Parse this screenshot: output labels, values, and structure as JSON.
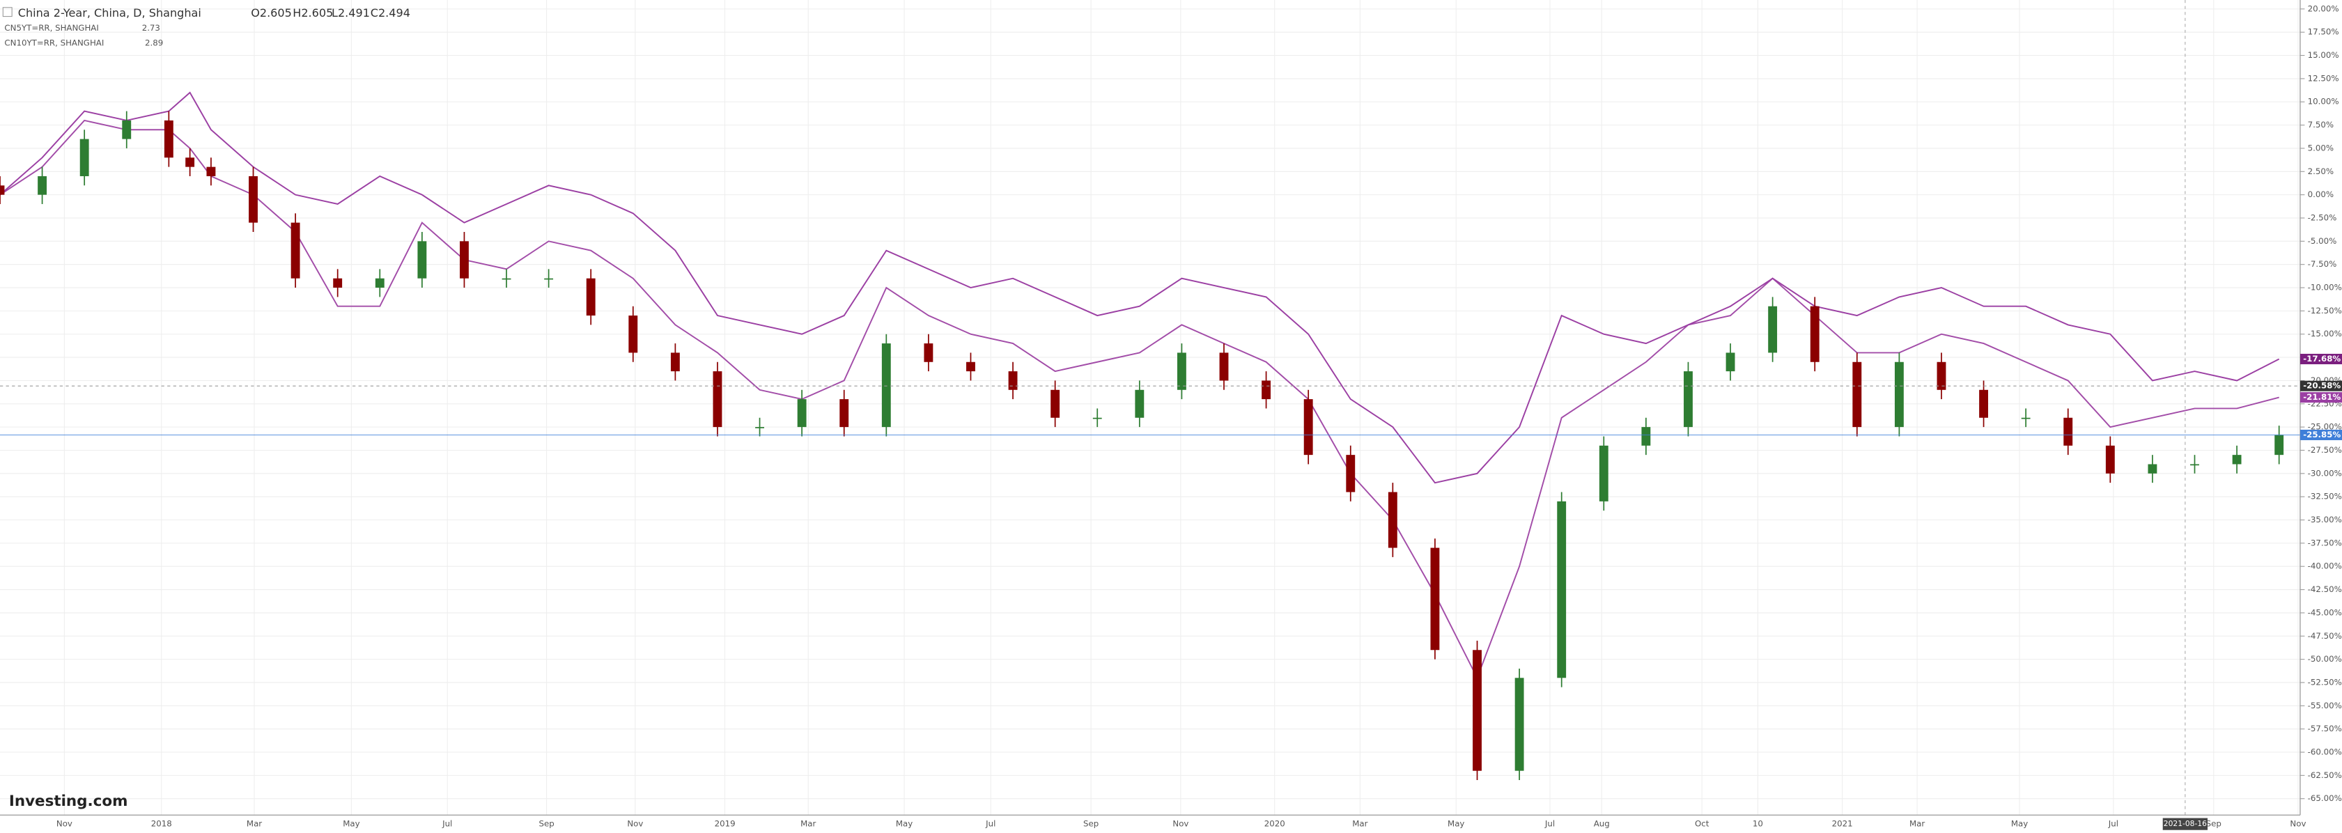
{
  "chart_data": {
    "type": "candlestick",
    "title": "China 2-Year, China, D, Shanghai",
    "ohlc_labels": [
      "O2.605",
      "H2.605",
      "L2.491",
      "C2.494"
    ],
    "logo": "Investing.com",
    "crosshair_label": "2021-08-16",
    "x": [
      0,
      4,
      8,
      12,
      16,
      18,
      20,
      24,
      28,
      32,
      36,
      40,
      44,
      48,
      52,
      56,
      60,
      64,
      68,
      72,
      76,
      80,
      84,
      88,
      92,
      96,
      100,
      104,
      108,
      112,
      116,
      120,
      124,
      128,
      132,
      136,
      140,
      144,
      148,
      152,
      156,
      160,
      164,
      168,
      172,
      176,
      180,
      184,
      188,
      192,
      196,
      200,
      204,
      208,
      212,
      216
    ],
    "open": [
      1,
      0,
      2,
      6,
      8,
      4,
      3,
      2,
      -3,
      -9,
      -10,
      -9,
      -5,
      -9,
      -9,
      -9,
      -13,
      -17,
      -19,
      -25,
      -25,
      -22,
      -25,
      -16,
      -18,
      -19,
      -21,
      -24,
      -24,
      -21,
      -17,
      -20,
      -22,
      -28,
      -32,
      -38,
      -49,
      -62,
      -52,
      -33,
      -27,
      -25,
      -19,
      -17,
      -12,
      -18,
      -25,
      -18,
      -21,
      -24,
      -24,
      -27,
      -30,
      -29,
      -29,
      -28
    ],
    "high": [
      2,
      3,
      7,
      9,
      9,
      5,
      4,
      3,
      -2,
      -8,
      -8,
      -4,
      -4,
      -8,
      -8,
      -8,
      -12,
      -16,
      -18,
      -24,
      -21,
      -21,
      -15,
      -15,
      -17,
      -18,
      -20,
      -23,
      -20,
      -16,
      -16,
      -19,
      -21,
      -27,
      -31,
      -37,
      -48,
      -51,
      -32,
      -26,
      -24,
      -18,
      -16,
      -11,
      -11,
      -17,
      -17,
      -17,
      -20,
      -23,
      -23,
      -26,
      -28,
      -28,
      -27,
      -24.85
    ],
    "low": [
      -1,
      -1,
      1,
      5,
      3,
      2,
      1,
      -4,
      -10,
      -11,
      -11,
      -10,
      -10,
      -10,
      -10,
      -14,
      -18,
      -20,
      -26,
      -26,
      -26,
      -26,
      -26,
      -19,
      -20,
      -22,
      -25,
      -25,
      -25,
      -22,
      -21,
      -23,
      -29,
      -33,
      -39,
      -50,
      -63,
      -63,
      -53,
      -34,
      -28,
      -26,
      -20,
      -18,
      -19,
      -26,
      -26,
      -22,
      -25,
      -25,
      -28,
      -31,
      -31,
      -30,
      -30,
      -29
    ],
    "close": [
      0,
      2,
      6,
      8,
      4,
      3,
      2,
      -3,
      -9,
      -10,
      -9,
      -5,
      -9,
      -9,
      -9,
      -13,
      -17,
      -19,
      -25,
      -25,
      -22,
      -25,
      -16,
      -18,
      -19,
      -21,
      -24,
      -24,
      -21,
      -17,
      -20,
      -22,
      -28,
      -32,
      -38,
      -49,
      -62,
      -52,
      -33,
      -27,
      -25,
      -19,
      -17,
      -12,
      -18,
      -25,
      -18,
      -21,
      -24,
      -24,
      -27,
      -30,
      -29,
      -29,
      -28,
      -25.85
    ],
    "up_color": "#2e7d32",
    "down_color": "#8b0000",
    "series": [
      {
        "name": "CN5YT=RR, SHANGHAI",
        "last": "2.73",
        "color": "#a24ca8",
        "values": [
          0,
          3,
          8,
          7,
          7,
          5,
          2,
          0,
          -4,
          -12,
          -12,
          -3,
          -7,
          -8,
          -5,
          -6,
          -9,
          -14,
          -17,
          -21,
          -22,
          -20,
          -10,
          -13,
          -15,
          -16,
          -19,
          -18,
          -17,
          -14,
          -16,
          -18,
          -22,
          -30,
          -35,
          -43,
          -52,
          -40,
          -24,
          -21,
          -18,
          -14,
          -13,
          -9,
          -13,
          -17,
          -17,
          -15,
          -16,
          -18,
          -20,
          -25,
          -24,
          -23,
          -23,
          -21.81
        ]
      },
      {
        "name": "CN10YT=RR, SHANGHAI",
        "last": "2.89",
        "color": "#9b3fa3",
        "values": [
          0,
          4,
          9,
          8,
          9,
          11,
          7,
          3,
          0,
          -1,
          2,
          0,
          -3,
          -1,
          1,
          0,
          -2,
          -6,
          -13,
          -14,
          -15,
          -13,
          -6,
          -8,
          -10,
          -9,
          -11,
          -13,
          -12,
          -9,
          -10,
          -11,
          -15,
          -22,
          -25,
          -31,
          -30,
          -25,
          -13,
          -15,
          -16,
          -14,
          -12,
          -9,
          -12,
          -13,
          -11,
          -10,
          -12,
          -12,
          -14,
          -15,
          -20,
          -19,
          -20,
          -17.68
        ]
      }
    ],
    "badges": [
      {
        "value": -17.68,
        "label": "-17.68%",
        "color": "#7b1f7f"
      },
      {
        "value": -20.58,
        "label": "-20.58%",
        "color": "#333333"
      },
      {
        "value": -21.81,
        "label": "-21.81%",
        "color": "#9b3fa3"
      },
      {
        "value": -25.85,
        "label": "-25.85%",
        "color": "#3f7fd9"
      }
    ],
    "xlim": [
      0,
      218
    ],
    "ylim": [
      -65,
      20
    ],
    "yticks": [
      {
        "value": 20,
        "label": "20.00%"
      },
      {
        "value": 17.5,
        "label": "17.50%"
      },
      {
        "value": 15,
        "label": "15.00%"
      },
      {
        "value": 12.5,
        "label": "12.50%"
      },
      {
        "value": 10,
        "label": "10.00%"
      },
      {
        "value": 7.5,
        "label": "7.50%"
      },
      {
        "value": 5,
        "label": "5.00%"
      },
      {
        "value": 2.5,
        "label": "2.50%"
      },
      {
        "value": 0,
        "label": "0.00%"
      },
      {
        "value": -2.5,
        "label": "-2.50%"
      },
      {
        "value": -5,
        "label": "-5.00%"
      },
      {
        "value": -7.5,
        "label": "-7.50%"
      },
      {
        "value": -10,
        "label": "-10.00%"
      },
      {
        "value": -12.5,
        "label": "-12.50%"
      },
      {
        "value": -15,
        "label": "-15.00%"
      },
      {
        "value": -17.5,
        "label": "-17.50%"
      },
      {
        "value": -20,
        "label": "-20.00%"
      },
      {
        "value": -22.5,
        "label": "-22.50%"
      },
      {
        "value": -25,
        "label": "-25.00%"
      },
      {
        "value": -27.5,
        "label": "-27.50%"
      },
      {
        "value": -30,
        "label": "-30.00%"
      },
      {
        "value": -32.5,
        "label": "-32.50%"
      },
      {
        "value": -35,
        "label": "-35.00%"
      },
      {
        "value": -37.5,
        "label": "-37.50%"
      },
      {
        "value": -40,
        "label": "-40.00%"
      },
      {
        "value": -42.5,
        "label": "-42.50%"
      },
      {
        "value": -45,
        "label": "-45.00%"
      },
      {
        "value": -47.5,
        "label": "-47.50%"
      },
      {
        "value": -50,
        "label": "-50.00%"
      },
      {
        "value": -52.5,
        "label": "-52.50%"
      },
      {
        "value": -55,
        "label": "-55.00%"
      },
      {
        "value": -57.5,
        "label": "-57.50%"
      },
      {
        "value": -60,
        "label": "-60.00%"
      },
      {
        "value": -62.5,
        "label": "-62.50%"
      },
      {
        "value": -65,
        "label": "-65.00%"
      }
    ],
    "xticks": [
      {
        "value": 6.1,
        "label": "Nov"
      },
      {
        "value": 15.3,
        "label": "2018"
      },
      {
        "value": 24.1,
        "label": "Mar"
      },
      {
        "value": 33.3,
        "label": "May"
      },
      {
        "value": 42.4,
        "label": "Jul"
      },
      {
        "value": 51.8,
        "label": "Sep"
      },
      {
        "value": 60.2,
        "label": "Nov"
      },
      {
        "value": 68.7,
        "label": "2019"
      },
      {
        "value": 76.6,
        "label": "Mar"
      },
      {
        "value": 85.7,
        "label": "May"
      },
      {
        "value": 93.9,
        "label": "Jul"
      },
      {
        "value": 103.4,
        "label": "Sep"
      },
      {
        "value": 111.9,
        "label": "Nov"
      },
      {
        "value": 120.8,
        "label": "2020"
      },
      {
        "value": 128.9,
        "label": "Mar"
      },
      {
        "value": 138,
        "label": "May"
      },
      {
        "value": 146.9,
        "label": "Jul"
      },
      {
        "value": 151.8,
        "label": "Aug"
      },
      {
        "value": 161.3,
        "label": "Oct"
      },
      {
        "value": 166.6,
        "label": "10"
      },
      {
        "value": 174.6,
        "label": "2021"
      },
      {
        "value": 181.7,
        "label": "Mar"
      },
      {
        "value": 191.4,
        "label": "May"
      },
      {
        "value": 200.3,
        "label": "Jul"
      },
      {
        "value": 209.8,
        "label": "Sep"
      },
      {
        "value": 217.8,
        "label": "Nov"
      }
    ],
    "crosshair_x": 207.1,
    "grid": true
  }
}
